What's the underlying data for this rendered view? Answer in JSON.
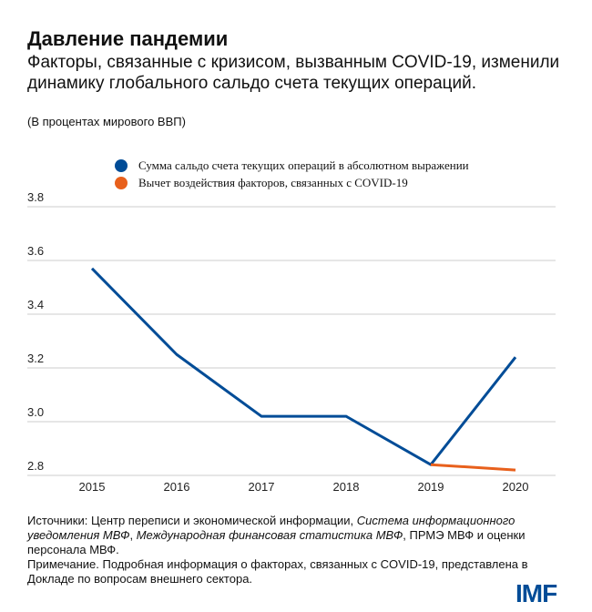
{
  "header": {
    "title": "Давление пандемии",
    "subtitle": "Факторы, связанные с кризисом, вызванным COVID-19, изменили динамику глобального сальдо счета текущих операций.",
    "unit": "(В процентах мирового ВВП)"
  },
  "chart_data": {
    "type": "line",
    "title": "Давление пандемии",
    "ylabel": "(В процентах мирового ВВП)",
    "categories": [
      "2015",
      "2016",
      "2017",
      "2018",
      "2019",
      "2020"
    ],
    "ylim": [
      2.8,
      3.8
    ],
    "yticks": [
      "2.8",
      "3.0",
      "3.2",
      "3.4",
      "3.6",
      "3.8"
    ],
    "grid": true,
    "legend_position": "top",
    "series": [
      {
        "name": "Сумма сальдо счета текущих операций в абсолютном выражении",
        "color": "#004c97",
        "values": [
          3.57,
          3.25,
          3.02,
          3.02,
          2.84,
          3.24
        ]
      },
      {
        "name": "Вычет воздействия факторов, связанных с COVID-19",
        "color": "#e8601c",
        "values": [
          null,
          null,
          null,
          null,
          2.84,
          2.82
        ]
      }
    ]
  },
  "footer": {
    "sources_prefix": "Источники: Центр переписи и экономической информации, ",
    "sources_italic1": "Система информационного уведомления МВФ",
    "sources_sep": ", ",
    "sources_italic2": "Международная финансовая статистика МВФ",
    "sources_suffix": ", ПРМЭ МВФ и оценки персонала МВФ.",
    "note": "Примечание. Подробная информация о факторах, связанных с COVID-19, представлена в Докладе по вопросам внешнего сектора."
  },
  "logo": "IMF"
}
